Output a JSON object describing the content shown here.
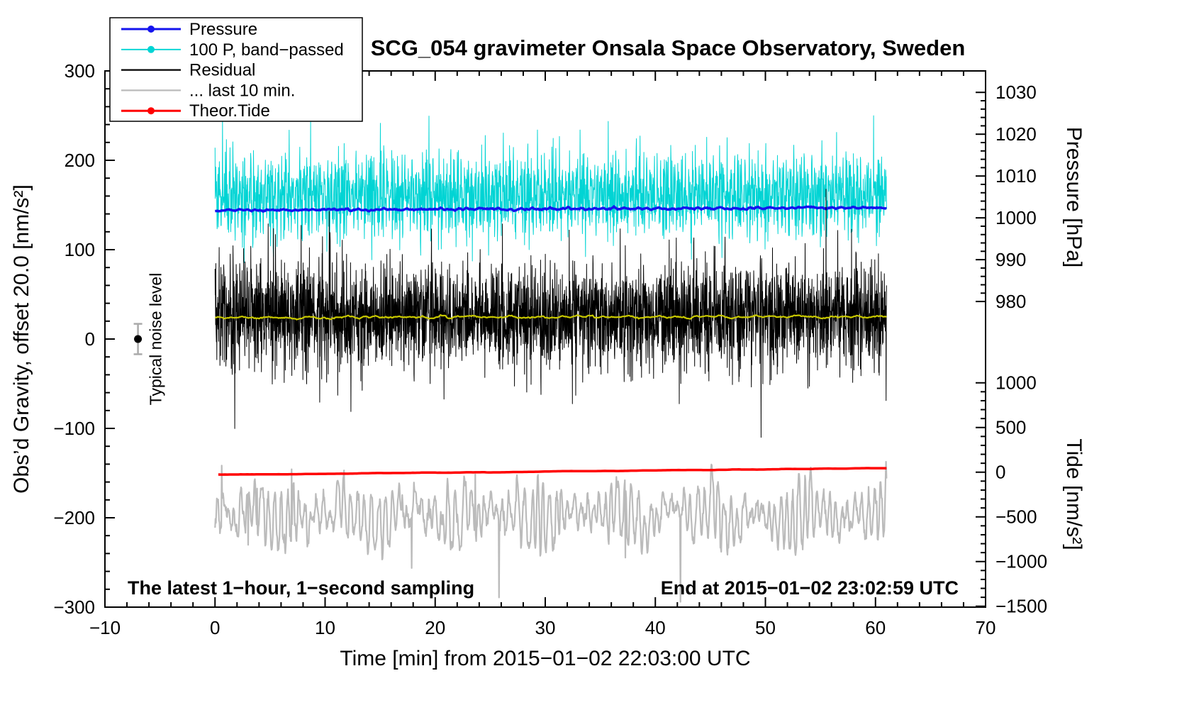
{
  "title": "SCG_054 gravimeter Onsala Space Observatory, Sweden",
  "annotations": {
    "sampling": "The latest 1−hour, 1−second sampling",
    "end_time": "End at 2015−01−02 23:02:59 UTC",
    "noise_label": "Typical noise level"
  },
  "legend": {
    "items": [
      {
        "id": "pressure",
        "label": "Pressure",
        "color": "#1414ee",
        "dot": true,
        "width": 3
      },
      {
        "id": "band-passed",
        "label": "100 P, band−passed",
        "color": "#00d4d4",
        "dot": true,
        "width": 1.8
      },
      {
        "id": "residual",
        "label": "Residual",
        "color": "#000000",
        "dot": false,
        "width": 2.2
      },
      {
        "id": "last-10-min",
        "label": "... last 10 min.",
        "color": "#bbbbbb",
        "dot": false,
        "width": 2.2
      },
      {
        "id": "theor-tide",
        "label": "Theor.Tide",
        "color": "#ff0000",
        "dot": true,
        "width": 3
      }
    ]
  },
  "chart_data": {
    "type": "line",
    "x_axis": {
      "label": "Time [min] from 2015−01−02 22:03:00 UTC",
      "range": [
        -10,
        70
      ],
      "major_ticks": [
        -10,
        0,
        10,
        20,
        30,
        40,
        50,
        60,
        70
      ],
      "minor_step": 2
    },
    "y_left": {
      "label": "Obs’d Gravity, offset 20.0 [nm/s²]",
      "range": [
        -300,
        300
      ],
      "major_ticks": [
        -300,
        -200,
        -100,
        0,
        100,
        200,
        300
      ],
      "minor_step": 20
    },
    "y_pressure": {
      "label": "Pressure [hPa]",
      "ticks": [
        1030,
        1020,
        1010,
        1000,
        990,
        980
      ],
      "minor_step": 2,
      "map": {
        "v1": 1030,
        "g1": 276,
        "v2": 980,
        "g2": 42
      }
    },
    "y_tide": {
      "label": "Tide [nm/s²]",
      "ticks": [
        1000,
        500,
        0,
        -500,
        -1000,
        -1500
      ],
      "minor_step": 100,
      "map": {
        "v1": 1000,
        "g1": -49,
        "v2": -1500,
        "g2": -299
      }
    },
    "series": [
      {
        "id": "band-passed",
        "color": "#00d4d4",
        "width": 1,
        "gen": "band",
        "seed": 7,
        "t0": 0,
        "t1": 61,
        "n": 2600,
        "base": 161,
        "amp": 30,
        "white": 12,
        "spike_p": 0.006,
        "spike": 55
      },
      {
        "id": "pressure",
        "color": "#1414ee",
        "width": 3.5,
        "gen": "trend",
        "seed": 11,
        "t0": 0,
        "t1": 61,
        "n": 900,
        "base": 144.2,
        "slope": 0.045,
        "noise": 1.4,
        "smooth": 2
      },
      {
        "id": "residual",
        "color": "#000000",
        "width": 1,
        "gen": "spiky",
        "seed": 23,
        "t0": 0,
        "t1": 61,
        "n": 3400,
        "base": 25,
        "sd": 27,
        "spike_p": 0.004,
        "spike": 60
      },
      {
        "id": "residual-smoothed",
        "color": "#c8c800",
        "width": 2.2,
        "gen": "trend",
        "seed": 31,
        "t0": 0,
        "t1": 61,
        "n": 700,
        "base": 24,
        "slope": 0.02,
        "noise": 2.2,
        "smooth": 3
      },
      {
        "id": "last-10-min",
        "color": "#bbbbbb",
        "width": 2.2,
        "gen": "wave",
        "seed": 41,
        "t0": 0,
        "t1": 61,
        "n": 1500,
        "base": -196,
        "amp": 34,
        "white": 10,
        "spike_p": 0.005,
        "spike": 70
      },
      {
        "id": "tide",
        "color": "#ff0000",
        "width": 3.5,
        "gen": "line",
        "seed": 51,
        "t0": 0.3,
        "t1": 61,
        "n": 300,
        "v0": -152,
        "v1": -144.5,
        "noise": 0.4,
        "smooth": 5
      }
    ],
    "noise_marker": {
      "x": -7,
      "value": 0,
      "error": 17
    }
  }
}
